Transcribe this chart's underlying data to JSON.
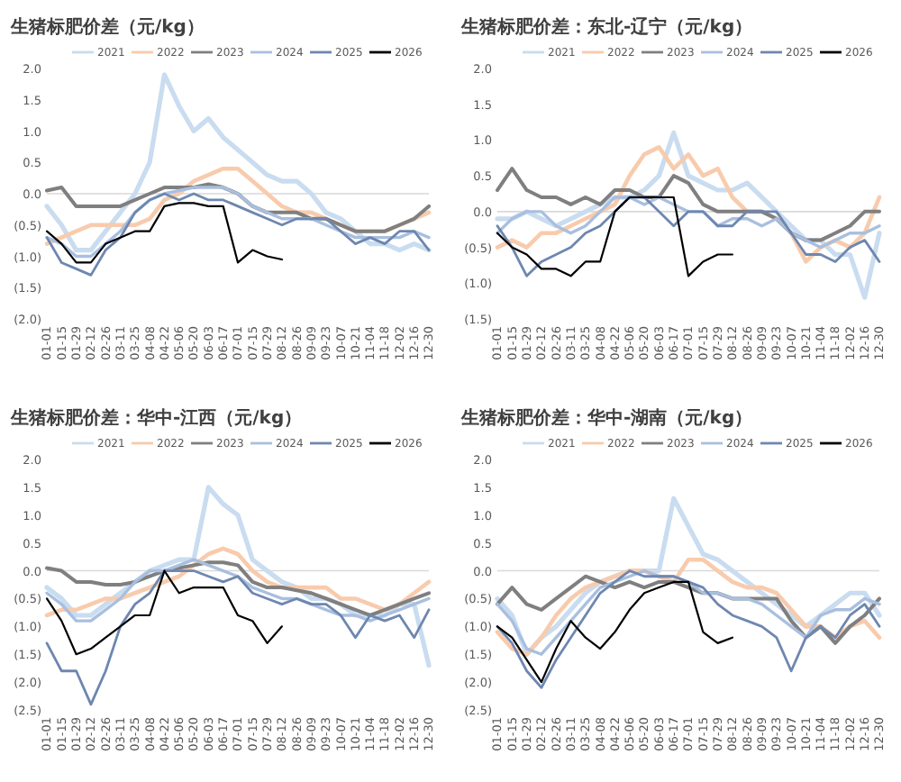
{
  "chart_data": [
    {
      "type": "line",
      "title": "生猪标肥价差（元/kg）",
      "legend": "top",
      "ylim": [
        -2,
        2
      ],
      "yticks": [
        {
          "value": 2,
          "label": "2.0"
        },
        {
          "value": 1.5,
          "label": "1.5"
        },
        {
          "value": 1,
          "label": "1.0"
        },
        {
          "value": 0.5,
          "label": "0.5"
        },
        {
          "value": 0,
          "label": "0.0"
        },
        {
          "value": -0.5,
          "label": "(0.5)"
        },
        {
          "value": -1,
          "label": "(1.0)"
        },
        {
          "value": -1.5,
          "label": "(1.5)"
        },
        {
          "value": -2,
          "label": "(2.0)"
        }
      ],
      "ref_lines": [
        {
          "axis": "y",
          "value": 0,
          "color": "#d9d9d9"
        }
      ],
      "categories": [
        "01-01",
        "01-15",
        "01-29",
        "02-12",
        "02-26",
        "03-11",
        "03-25",
        "04-08",
        "04-22",
        "05-06",
        "05-20",
        "06-03",
        "06-17",
        "07-01",
        "07-15",
        "07-29",
        "08-12",
        "08-26",
        "09-09",
        "09-23",
        "10-07",
        "10-21",
        "11-04",
        "11-18",
        "12-02",
        "12-16",
        "12-30"
      ],
      "series": [
        {
          "name": "2021",
          "color": "#c9dcf0",
          "values": [
            -0.2,
            -0.5,
            -0.9,
            -0.9,
            -0.6,
            -0.3,
            0.0,
            0.5,
            1.9,
            1.4,
            1.0,
            1.2,
            0.9,
            0.7,
            0.5,
            0.3,
            0.2,
            0.2,
            0.0,
            -0.3,
            -0.4,
            -0.6,
            -0.8,
            -0.8,
            -0.9,
            -0.8,
            -0.9
          ]
        },
        {
          "name": "2022",
          "color": "#f8cbad",
          "values": [
            -0.8,
            -0.7,
            -0.6,
            -0.5,
            -0.5,
            -0.5,
            -0.5,
            -0.4,
            -0.1,
            0.0,
            0.2,
            0.3,
            0.4,
            0.4,
            0.2,
            0.0,
            -0.2,
            -0.3,
            -0.3,
            -0.4,
            -0.5,
            -0.6,
            -0.6,
            -0.6,
            -0.5,
            -0.4,
            -0.3
          ]
        },
        {
          "name": "2023",
          "color": "#7f7f7f",
          "values": [
            0.05,
            0.1,
            -0.2,
            -0.2,
            -0.2,
            -0.2,
            -0.1,
            0.0,
            0.1,
            0.1,
            0.1,
            0.15,
            0.1,
            0.0,
            -0.2,
            -0.3,
            -0.3,
            -0.3,
            -0.4,
            -0.4,
            -0.5,
            -0.6,
            -0.6,
            -0.6,
            -0.5,
            -0.4,
            -0.2
          ]
        },
        {
          "name": "2024",
          "color": "#a9bfdf",
          "values": [
            -0.7,
            -0.8,
            -1.0,
            -1.0,
            -0.8,
            -0.6,
            -0.3,
            -0.1,
            0.0,
            0.05,
            0.1,
            0.1,
            0.1,
            0.0,
            -0.2,
            -0.3,
            -0.4,
            -0.4,
            -0.4,
            -0.5,
            -0.6,
            -0.7,
            -0.7,
            -0.7,
            -0.7,
            -0.6,
            -0.7
          ]
        },
        {
          "name": "2025",
          "color": "#6e87b0",
          "values": [
            -0.7,
            -1.1,
            -1.2,
            -1.3,
            -0.9,
            -0.7,
            -0.3,
            -0.1,
            0.0,
            -0.1,
            0.0,
            -0.1,
            -0.1,
            -0.2,
            -0.3,
            -0.4,
            -0.5,
            -0.4,
            -0.4,
            -0.4,
            -0.6,
            -0.8,
            -0.7,
            -0.8,
            -0.6,
            -0.6,
            -0.9
          ]
        },
        {
          "name": "2026",
          "color": "#000000",
          "values": [
            -0.6,
            -0.8,
            -1.1,
            -1.1,
            -0.8,
            -0.7,
            -0.6,
            -0.6,
            -0.2,
            -0.15,
            -0.15,
            -0.2,
            -0.2,
            -1.1,
            -0.9,
            -1.0,
            -1.05,
            null,
            null,
            null,
            null,
            null,
            null,
            null,
            null,
            null,
            null
          ]
        }
      ]
    },
    {
      "type": "line",
      "title": "生猪标肥价差：东北-辽宁（元/kg）",
      "legend": "top",
      "ylim": [
        -1.5,
        2
      ],
      "yticks": [
        {
          "value": 2,
          "label": "2.0"
        },
        {
          "value": 1.5,
          "label": "1.5"
        },
        {
          "value": 1,
          "label": "1.0"
        },
        {
          "value": 0.5,
          "label": "0.5"
        },
        {
          "value": 0,
          "label": "0.0"
        },
        {
          "value": -0.5,
          "label": "(0.5)"
        },
        {
          "value": -1,
          "label": "(1.0)"
        },
        {
          "value": -1.5,
          "label": "(1.5)"
        }
      ],
      "ref_lines": [
        {
          "axis": "y",
          "value": 0,
          "color": "#d9d9d9"
        }
      ],
      "categories": [
        "01-01",
        "01-15",
        "01-29",
        "02-12",
        "02-26",
        "03-11",
        "03-25",
        "04-08",
        "04-22",
        "05-06",
        "05-20",
        "06-03",
        "06-17",
        "07-01",
        "07-15",
        "07-29",
        "08-12",
        "08-26",
        "09-09",
        "09-23",
        "10-07",
        "10-21",
        "11-04",
        "11-18",
        "12-02",
        "12-16",
        "12-30"
      ],
      "series": [
        {
          "name": "2021",
          "color": "#c9dcf0",
          "values": [
            -0.1,
            -0.1,
            0.0,
            -0.1,
            -0.2,
            -0.1,
            0.0,
            0.1,
            0.2,
            0.2,
            0.3,
            0.5,
            1.1,
            0.5,
            0.4,
            0.3,
            0.3,
            0.4,
            0.2,
            0.0,
            -0.2,
            -0.4,
            -0.4,
            -0.6,
            -0.6,
            -1.2,
            -0.3
          ]
        },
        {
          "name": "2022",
          "color": "#f8cbad",
          "values": [
            -0.5,
            -0.4,
            -0.5,
            -0.3,
            -0.3,
            -0.2,
            -0.1,
            0.0,
            0.1,
            0.5,
            0.8,
            0.9,
            0.6,
            0.8,
            0.5,
            0.6,
            0.2,
            0.0,
            0.0,
            -0.1,
            -0.3,
            -0.7,
            -0.5,
            -0.4,
            -0.5,
            -0.3,
            0.2
          ]
        },
        {
          "name": "2023",
          "color": "#7f7f7f",
          "values": [
            0.3,
            0.6,
            0.3,
            0.2,
            0.2,
            0.1,
            0.2,
            0.1,
            0.3,
            0.3,
            0.2,
            0.2,
            0.5,
            0.4,
            0.1,
            0.0,
            0.0,
            0.0,
            0.0,
            -0.1,
            -0.3,
            -0.4,
            -0.4,
            -0.3,
            -0.2,
            0.0,
            0.0
          ]
        },
        {
          "name": "2024",
          "color": "#a9bfdf",
          "values": [
            -0.3,
            -0.1,
            0.0,
            0.0,
            -0.2,
            -0.3,
            -0.2,
            0.0,
            0.2,
            0.2,
            0.1,
            0.2,
            0.1,
            0.0,
            0.0,
            -0.2,
            -0.1,
            -0.1,
            -0.2,
            -0.1,
            -0.3,
            -0.4,
            -0.5,
            -0.4,
            -0.3,
            -0.3,
            -0.2
          ]
        },
        {
          "name": "2025",
          "color": "#6e87b0",
          "values": [
            -0.2,
            -0.5,
            -0.9,
            -0.7,
            -0.6,
            -0.5,
            -0.3,
            -0.2,
            0.0,
            0.2,
            0.2,
            0.0,
            -0.2,
            0.0,
            0.0,
            -0.2,
            -0.2,
            0.0,
            0.0,
            0.0,
            -0.3,
            -0.6,
            -0.6,
            -0.7,
            -0.5,
            -0.4,
            -0.7
          ]
        },
        {
          "name": "2026",
          "color": "#000000",
          "values": [
            -0.3,
            -0.5,
            -0.6,
            -0.8,
            -0.8,
            -0.9,
            -0.7,
            -0.7,
            0.0,
            0.2,
            0.2,
            0.2,
            0.2,
            -0.9,
            -0.7,
            -0.6,
            -0.6,
            null,
            null,
            null,
            null,
            null,
            null,
            null,
            null,
            null,
            null
          ]
        }
      ]
    },
    {
      "type": "line",
      "title": "生猪标肥价差：华中-江西（元/kg）",
      "legend": "top",
      "ylim": [
        -2.5,
        2
      ],
      "yticks": [
        {
          "value": 2,
          "label": "2.0"
        },
        {
          "value": 1.5,
          "label": "1.5"
        },
        {
          "value": 1,
          "label": "1.0"
        },
        {
          "value": 0.5,
          "label": "0.5"
        },
        {
          "value": 0,
          "label": "0.0"
        },
        {
          "value": -0.5,
          "label": "(0.5)"
        },
        {
          "value": -1,
          "label": "(1.0)"
        },
        {
          "value": -1.5,
          "label": "(1.5)"
        },
        {
          "value": -2,
          "label": "(2.0)"
        },
        {
          "value": -2.5,
          "label": "(2.5)"
        }
      ],
      "ref_lines": [
        {
          "axis": "y",
          "value": 0,
          "color": "#d9d9d9"
        }
      ],
      "categories": [
        "01-01",
        "01-15",
        "01-29",
        "02-12",
        "02-26",
        "03-11",
        "03-25",
        "04-08",
        "04-22",
        "05-06",
        "05-20",
        "06-03",
        "06-17",
        "07-01",
        "07-15",
        "07-29",
        "08-12",
        "08-26",
        "09-09",
        "09-23",
        "10-07",
        "10-21",
        "11-04",
        "11-18",
        "12-02",
        "12-16",
        "12-30"
      ],
      "series": [
        {
          "name": "2021",
          "color": "#c9dcf0",
          "values": [
            -0.3,
            -0.5,
            -0.8,
            -0.8,
            -0.6,
            -0.4,
            -0.2,
            0.0,
            0.1,
            0.2,
            0.2,
            1.5,
            1.2,
            1.0,
            0.2,
            0.0,
            -0.2,
            -0.3,
            -0.5,
            -0.5,
            -0.6,
            -0.8,
            -0.8,
            -0.8,
            -0.6,
            -0.6,
            -1.7
          ]
        },
        {
          "name": "2022",
          "color": "#f8cbad",
          "values": [
            -0.8,
            -0.7,
            -0.7,
            -0.6,
            -0.5,
            -0.5,
            -0.4,
            -0.3,
            -0.2,
            -0.1,
            0.1,
            0.3,
            0.4,
            0.3,
            0.0,
            -0.2,
            -0.3,
            -0.3,
            -0.3,
            -0.3,
            -0.5,
            -0.5,
            -0.6,
            -0.7,
            -0.6,
            -0.4,
            -0.2
          ]
        },
        {
          "name": "2023",
          "color": "#7f7f7f",
          "values": [
            0.05,
            0.0,
            -0.2,
            -0.2,
            -0.25,
            -0.25,
            -0.2,
            -0.1,
            0.0,
            0.05,
            0.1,
            0.15,
            0.15,
            0.1,
            -0.2,
            -0.3,
            -0.3,
            -0.35,
            -0.4,
            -0.5,
            -0.6,
            -0.7,
            -0.8,
            -0.7,
            -0.6,
            -0.5,
            -0.4
          ]
        },
        {
          "name": "2024",
          "color": "#a9bfdf",
          "values": [
            -0.4,
            -0.6,
            -0.9,
            -0.9,
            -0.7,
            -0.5,
            -0.2,
            0.0,
            0.0,
            0.1,
            0.2,
            0.1,
            0.0,
            -0.1,
            -0.3,
            -0.4,
            -0.5,
            -0.5,
            -0.6,
            -0.7,
            -0.8,
            -0.8,
            -0.9,
            -0.8,
            -0.7,
            -0.6,
            -0.5
          ]
        },
        {
          "name": "2025",
          "color": "#6e87b0",
          "values": [
            -1.3,
            -1.8,
            -1.8,
            -2.4,
            -1.8,
            -1.0,
            -0.6,
            -0.4,
            0.0,
            0.0,
            0.0,
            -0.1,
            -0.2,
            -0.1,
            -0.4,
            -0.5,
            -0.6,
            -0.5,
            -0.6,
            -0.6,
            -0.8,
            -1.2,
            -0.8,
            -0.9,
            -0.8,
            -1.2,
            -0.7
          ]
        },
        {
          "name": "2026",
          "color": "#000000",
          "values": [
            -0.5,
            -0.9,
            -1.5,
            -1.4,
            -1.2,
            -1.0,
            -0.8,
            -0.8,
            0.0,
            -0.4,
            -0.3,
            -0.3,
            -0.3,
            -0.8,
            -0.9,
            -1.3,
            -1.0,
            null,
            null,
            null,
            null,
            null,
            null,
            null,
            null,
            null,
            null
          ]
        }
      ]
    },
    {
      "type": "line",
      "title": "生猪标肥价差：华中-湖南（元/kg）",
      "legend": "top",
      "ylim": [
        -2.5,
        2
      ],
      "yticks": [
        {
          "value": 2,
          "label": "2.0"
        },
        {
          "value": 1.5,
          "label": "1.5"
        },
        {
          "value": 1,
          "label": "1.0"
        },
        {
          "value": 0.5,
          "label": "0.5"
        },
        {
          "value": 0,
          "label": "0.0"
        },
        {
          "value": -0.5,
          "label": "(0.5)"
        },
        {
          "value": -1,
          "label": "(1.0)"
        },
        {
          "value": -1.5,
          "label": "(1.5)"
        },
        {
          "value": -2,
          "label": "(2.0)"
        },
        {
          "value": -2.5,
          "label": "(2.5)"
        }
      ],
      "ref_lines": [
        {
          "axis": "y",
          "value": 0,
          "color": "#d9d9d9"
        }
      ],
      "categories": [
        "01-01",
        "01-15",
        "01-29",
        "02-12",
        "02-26",
        "03-11",
        "03-25",
        "04-08",
        "04-22",
        "05-06",
        "05-20",
        "06-03",
        "06-17",
        "07-01",
        "07-15",
        "07-29",
        "08-12",
        "08-26",
        "09-09",
        "09-23",
        "10-07",
        "10-21",
        "11-04",
        "11-18",
        "12-02",
        "12-16",
        "12-30"
      ],
      "series": [
        {
          "name": "2021",
          "color": "#c9dcf0",
          "values": [
            -0.5,
            -0.8,
            -1.5,
            -1.2,
            -1.0,
            -0.7,
            -0.4,
            -0.2,
            -0.1,
            0.0,
            0.0,
            0.0,
            1.3,
            0.8,
            0.3,
            0.2,
            0.0,
            -0.2,
            -0.4,
            -0.6,
            -0.8,
            -1.0,
            -0.8,
            -0.6,
            -0.4,
            -0.4,
            -0.8
          ]
        },
        {
          "name": "2022",
          "color": "#f8cbad",
          "values": [
            -1.1,
            -1.4,
            -1.5,
            -1.2,
            -0.8,
            -0.5,
            -0.3,
            -0.2,
            -0.1,
            0.0,
            0.0,
            -0.1,
            -0.2,
            0.2,
            0.2,
            0.0,
            -0.2,
            -0.3,
            -0.3,
            -0.4,
            -0.7,
            -1.0,
            -1.0,
            -1.2,
            -1.0,
            -0.9,
            -1.2
          ]
        },
        {
          "name": "2023",
          "color": "#7f7f7f",
          "values": [
            -0.6,
            -0.3,
            -0.6,
            -0.7,
            -0.5,
            -0.3,
            -0.1,
            -0.2,
            -0.3,
            -0.2,
            -0.3,
            -0.2,
            -0.2,
            -0.3,
            -0.4,
            -0.4,
            -0.5,
            -0.5,
            -0.5,
            -0.5,
            -0.9,
            -1.2,
            -1.0,
            -1.3,
            -1.0,
            -0.8,
            -0.5
          ]
        },
        {
          "name": "2024",
          "color": "#a9bfdf",
          "values": [
            -0.6,
            -0.9,
            -1.4,
            -1.5,
            -1.2,
            -0.9,
            -0.6,
            -0.3,
            -0.2,
            -0.1,
            0.0,
            -0.1,
            -0.1,
            -0.2,
            -0.4,
            -0.4,
            -0.5,
            -0.5,
            -0.6,
            -0.8,
            -1.0,
            -1.2,
            -0.8,
            -0.7,
            -0.7,
            -0.5,
            -0.6
          ]
        },
        {
          "name": "2025",
          "color": "#6e87b0",
          "values": [
            -1.0,
            -1.3,
            -1.8,
            -2.1,
            -1.6,
            -1.2,
            -0.8,
            -0.4,
            -0.2,
            0.0,
            -0.1,
            -0.1,
            -0.1,
            -0.2,
            -0.3,
            -0.6,
            -0.8,
            -0.9,
            -1.0,
            -1.2,
            -1.8,
            -1.2,
            -1.0,
            -1.2,
            -0.8,
            -0.6,
            -1.0
          ]
        },
        {
          "name": "2026",
          "color": "#000000",
          "values": [
            -1.0,
            -1.2,
            -1.6,
            -2.0,
            -1.4,
            -0.9,
            -1.2,
            -1.4,
            -1.1,
            -0.7,
            -0.4,
            -0.3,
            -0.2,
            -0.2,
            -1.1,
            -1.3,
            -1.2,
            null,
            null,
            null,
            null,
            null,
            null,
            null,
            null,
            null,
            null
          ]
        }
      ]
    }
  ]
}
